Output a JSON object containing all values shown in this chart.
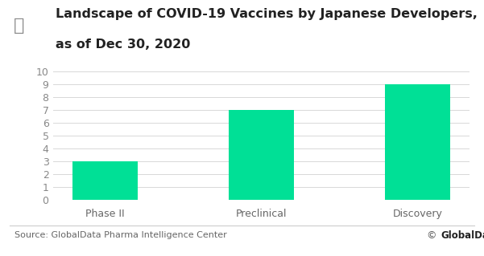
{
  "title_line1": "Landscape of COVID-19 Vaccines by Japanese Developers,",
  "title_line2": "as of Dec 30, 2020",
  "categories": [
    "Phase II",
    "Preclinical",
    "Discovery"
  ],
  "values": [
    3,
    7,
    9
  ],
  "bar_color": "#00E096",
  "ylim": [
    0,
    10
  ],
  "yticks": [
    0,
    1,
    2,
    3,
    4,
    5,
    6,
    7,
    8,
    9,
    10
  ],
  "source_text": "Source: GlobalData Pharma Intelligence Center",
  "globaldata_text": " GlobalData.",
  "background_color": "#ffffff",
  "grid_color": "#d8d8d8",
  "title_fontsize": 11.5,
  "tick_fontsize": 9,
  "source_fontsize": 8,
  "bar_width": 0.42
}
